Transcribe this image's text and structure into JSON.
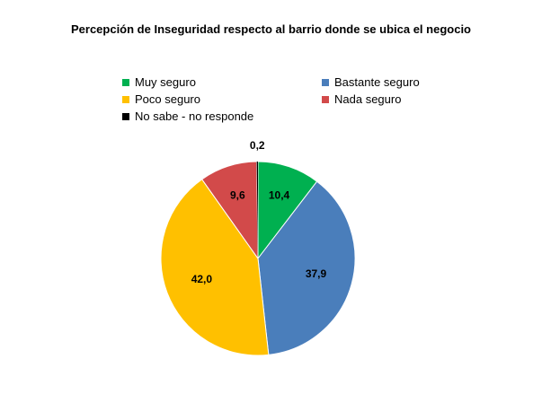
{
  "chart_data": {
    "type": "pie",
    "title": "Percepción de Inseguridad respecto al barrio donde se ubica el negocio",
    "legend_position": "top",
    "slices": [
      {
        "label": "Muy seguro",
        "value": 10.4,
        "display": "10,4",
        "color": "#00b050"
      },
      {
        "label": "Bastante seguro",
        "value": 37.9,
        "display": "37,9",
        "color": "#4a7ebb"
      },
      {
        "label": "Poco seguro",
        "value": 42.0,
        "display": "42,0",
        "color": "#ffc000"
      },
      {
        "label": "Nada seguro",
        "value": 9.6,
        "display": "9,6",
        "color": "#d24a4a"
      },
      {
        "label": "No sabe - no responde",
        "value": 0.2,
        "display": "0,2",
        "color": "#000000"
      }
    ]
  }
}
